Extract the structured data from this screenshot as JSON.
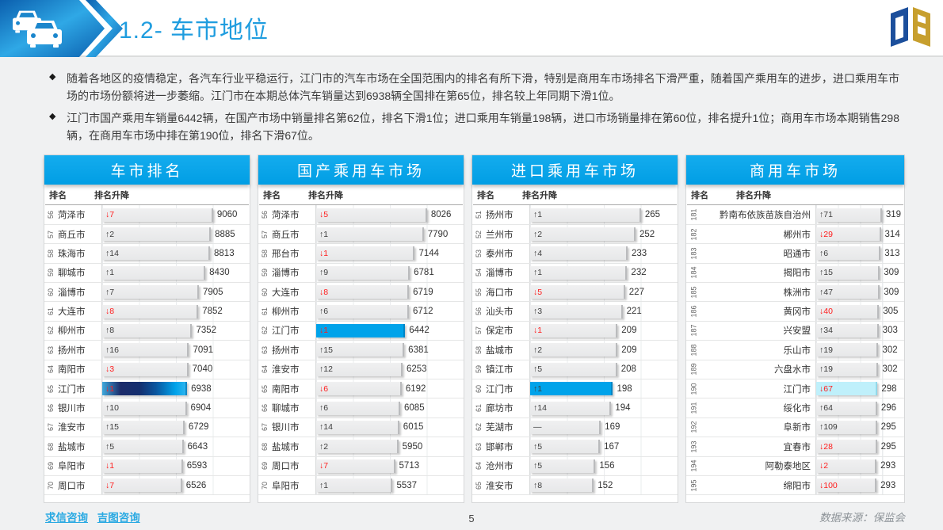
{
  "header": {
    "title": "1.2- 车市地位"
  },
  "bullet_marker": "◆",
  "bullets": [
    "随着各地区的疫情稳定，各汽车行业平稳运行，江门市的汽车市场在全国范围内的排名有所下滑，特别是商用车市场排名下滑严重，随着国产乘用车的进步，进口乘用车市场的市场份额将进一步萎缩。江门市在本期总体汽车销量达到6938辆全国排在第65位，排名较上年同期下滑1位。",
    "江门市国产乘用车销量6442辆，在国产市场中销量排名第62位，排名下滑1位；进口乘用车销量198辆，进口市场销量排在第60位，排名提升1位；商用车市场本期销售298辆，在商用车市场中排在第190位，排名下滑67位。"
  ],
  "table_columns": {
    "rank": "排名",
    "change": "排名升降"
  },
  "colors": {
    "accent_blue": "#00a3ea",
    "header_blue": "#0aa2e8",
    "highlight_cyan": "#bff0fb",
    "down_red": "#ff1c1c",
    "title_blue": "#1f9ddf",
    "logo_blue": "#1c4f9c",
    "logo_gold": "#c79f2e"
  },
  "tables": [
    {
      "title": "车市排名",
      "highlight_city": "江门市",
      "highlight_style": "gradient",
      "wide_city": false,
      "rows": [
        [
          56,
          "菏泽市",
          "↓7",
          9060
        ],
        [
          57,
          "商丘市",
          "↑2",
          8885
        ],
        [
          58,
          "珠海市",
          "↑14",
          8813
        ],
        [
          59,
          "聊城市",
          "↑1",
          8430
        ],
        [
          60,
          "淄博市",
          "↑7",
          7905
        ],
        [
          61,
          "大连市",
          "↓8",
          7852
        ],
        [
          62,
          "柳州市",
          "↑8",
          7352
        ],
        [
          63,
          "扬州市",
          "↑16",
          7091
        ],
        [
          64,
          "南阳市",
          "↓3",
          7040
        ],
        [
          65,
          "江门市",
          "↓1",
          6938
        ],
        [
          66,
          "银川市",
          "↑10",
          6904
        ],
        [
          67,
          "淮安市",
          "↑15",
          6729
        ],
        [
          68,
          "盐城市",
          "↑5",
          6643
        ],
        [
          69,
          "阜阳市",
          "↓1",
          6593
        ],
        [
          70,
          "周口市",
          "↓7",
          6526
        ]
      ]
    },
    {
      "title": "国产乘用车市场",
      "highlight_city": "江门市",
      "highlight_style": "solid",
      "wide_city": false,
      "rows": [
        [
          56,
          "菏泽市",
          "↓5",
          8026
        ],
        [
          57,
          "商丘市",
          "↑1",
          7790
        ],
        [
          58,
          "邢台市",
          "↓1",
          7144
        ],
        [
          59,
          "淄博市",
          "↑9",
          6781
        ],
        [
          60,
          "大连市",
          "↓8",
          6719
        ],
        [
          61,
          "柳州市",
          "↑6",
          6712
        ],
        [
          62,
          "江门市",
          "↓1",
          6442
        ],
        [
          63,
          "扬州市",
          "↑15",
          6381
        ],
        [
          64,
          "淮安市",
          "↑12",
          6253
        ],
        [
          65,
          "南阳市",
          "↓6",
          6192
        ],
        [
          66,
          "聊城市",
          "↑6",
          6085
        ],
        [
          67,
          "银川市",
          "↑14",
          6015
        ],
        [
          68,
          "盐城市",
          "↑2",
          5950
        ],
        [
          69,
          "周口市",
          "↓7",
          5713
        ],
        [
          70,
          "阜阳市",
          "↑1",
          5537
        ]
      ]
    },
    {
      "title": "进口乘用车市场",
      "highlight_city": "江门市",
      "highlight_style": "solid",
      "wide_city": false,
      "rows": [
        [
          51,
          "扬州市",
          "↑1",
          265
        ],
        [
          52,
          "兰州市",
          "↑2",
          252
        ],
        [
          53,
          "泰州市",
          "↑4",
          233
        ],
        [
          54,
          "淄博市",
          "↑1",
          232
        ],
        [
          55,
          "海口市",
          "↓5",
          227
        ],
        [
          56,
          "汕头市",
          "↑3",
          221
        ],
        [
          57,
          "保定市",
          "↓1",
          209
        ],
        [
          58,
          "盐城市",
          "↑2",
          209
        ],
        [
          59,
          "镇江市",
          "↑5",
          208
        ],
        [
          60,
          "江门市",
          "↑1",
          198
        ],
        [
          61,
          "廊坊市",
          "↑14",
          194
        ],
        [
          62,
          "芜湖市",
          "—",
          169
        ],
        [
          63,
          "邯郸市",
          "↑5",
          167
        ],
        [
          64,
          "沧州市",
          "↑5",
          156
        ],
        [
          65,
          "淮安市",
          "↑8",
          152
        ]
      ]
    },
    {
      "title": "商用车市场",
      "highlight_city": "江门市",
      "highlight_style": "cyan",
      "wide_city": true,
      "rows": [
        [
          181,
          "黔南布依族苗族自治州",
          "↑71",
          319
        ],
        [
          182,
          "郴州市",
          "↓29",
          314
        ],
        [
          183,
          "昭通市",
          "↑6",
          313
        ],
        [
          184,
          "揭阳市",
          "↑15",
          309
        ],
        [
          185,
          "株洲市",
          "↑47",
          309
        ],
        [
          186,
          "黄冈市",
          "↓40",
          305
        ],
        [
          187,
          "兴安盟",
          "↑34",
          303
        ],
        [
          188,
          "乐山市",
          "↑19",
          302
        ],
        [
          189,
          "六盘水市",
          "↑19",
          302
        ],
        [
          190,
          "江门市",
          "↓67",
          298
        ],
        [
          191,
          "绥化市",
          "↑64",
          296
        ],
        [
          192,
          "阜新市",
          "↑109",
          295
        ],
        [
          193,
          "宜春市",
          "↓28",
          295
        ],
        [
          194,
          "阿勒泰地区",
          "↓2",
          293
        ],
        [
          195,
          "绵阳市",
          "↓100",
          293
        ]
      ]
    }
  ],
  "footer": {
    "links": [
      "求信咨询",
      "吉图咨询"
    ],
    "page": "5",
    "source": "数据来源：保监会"
  }
}
